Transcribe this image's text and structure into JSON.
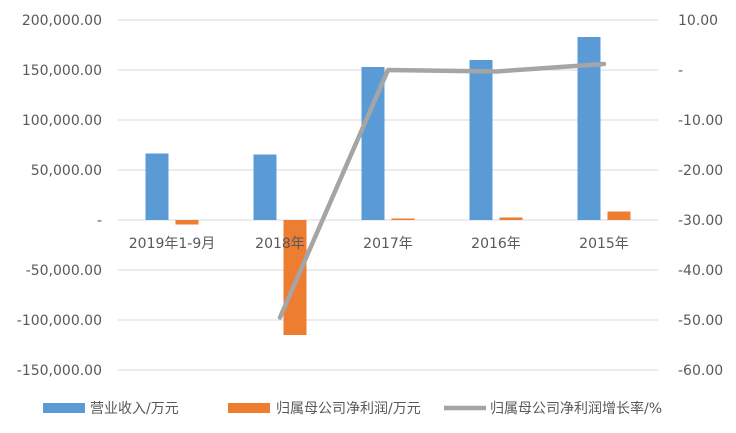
{
  "chart_data": {
    "type": "bar",
    "categories": [
      "2019年1-9月",
      "2018年",
      "2017年",
      "2016年",
      "2015年"
    ],
    "series": [
      {
        "name": "营业收入/万元",
        "type": "bar",
        "axis": "left",
        "color": "#5B9BD5",
        "values": [
          66500,
          65500,
          153000,
          160000,
          183000
        ]
      },
      {
        "name": "归属母公司净利润/万元",
        "type": "bar",
        "axis": "left",
        "color": "#ED7D31",
        "values": [
          -4500,
          -115000,
          1500,
          2500,
          8500
        ]
      },
      {
        "name": "归属母公司净利润增长率/%",
        "type": "line",
        "axis": "right",
        "color": "#A5A5A5",
        "values": [
          null,
          -49.5,
          0,
          -0.3,
          1.2
        ]
      }
    ],
    "yAxisLeft": {
      "min": -150000,
      "max": 200000,
      "step": 50000,
      "ticks": [
        "200,000.00",
        "150,000.00",
        "100,000.00",
        "50,000.00",
        "-",
        "-50,000.00",
        "-100,000.00",
        "-150,000.00"
      ]
    },
    "yAxisRight": {
      "min": -60,
      "max": 10,
      "step": 10,
      "ticks": [
        "10.00",
        "-",
        "-10.00",
        "-20.00",
        "-30.00",
        "-40.00",
        "-50.00",
        "-60.00"
      ]
    },
    "grid": true,
    "legend": "bottom"
  }
}
